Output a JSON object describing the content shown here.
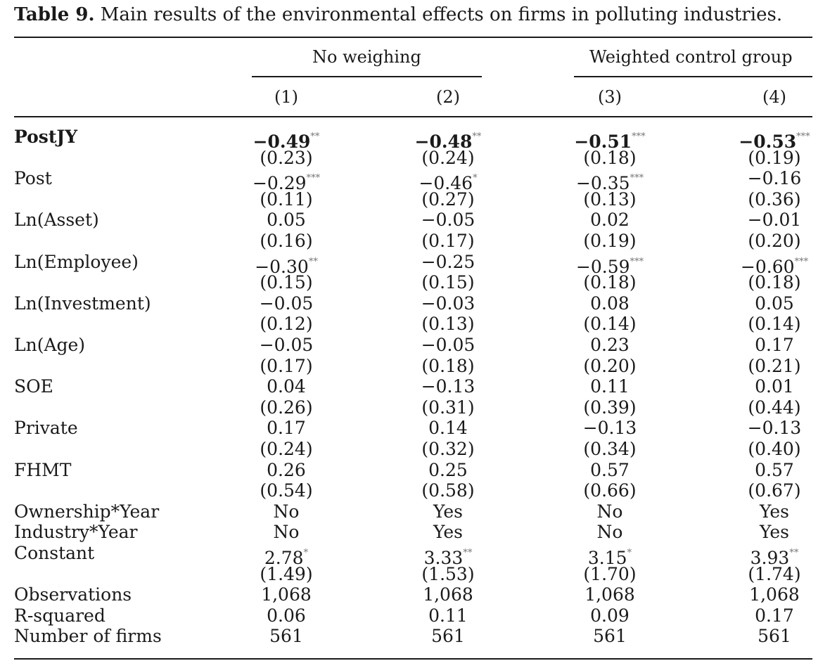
{
  "caption": {
    "label": "Table 9.",
    "text": " Main results of the environmental effects on firms in polluting industries."
  },
  "groups": {
    "left": "No weighing",
    "right": "Weighted control group"
  },
  "columns": [
    "(1)",
    "(2)",
    "(3)",
    "(4)"
  ],
  "rows": [
    {
      "label": "PostJY",
      "bold": true,
      "cells": [
        {
          "v": "−0.49",
          "s": "**"
        },
        {
          "v": "−0.48",
          "s": "**"
        },
        {
          "v": "−0.51",
          "s": "***"
        },
        {
          "v": "−0.53",
          "s": "***"
        }
      ]
    },
    {
      "label": "",
      "cells": [
        {
          "v": "(0.23)"
        },
        {
          "v": "(0.24)"
        },
        {
          "v": "(0.18)"
        },
        {
          "v": "(0.19)"
        }
      ]
    },
    {
      "label": "Post",
      "cells": [
        {
          "v": "−0.29",
          "s": "***"
        },
        {
          "v": "−0.46",
          "s": "*"
        },
        {
          "v": "−0.35",
          "s": "***"
        },
        {
          "v": "−0.16"
        }
      ]
    },
    {
      "label": "",
      "cells": [
        {
          "v": "(0.11)"
        },
        {
          "v": "(0.27)"
        },
        {
          "v": "(0.13)"
        },
        {
          "v": "(0.36)"
        }
      ]
    },
    {
      "label": "Ln(Asset)",
      "cells": [
        {
          "v": "0.05"
        },
        {
          "v": "−0.05"
        },
        {
          "v": "0.02"
        },
        {
          "v": "−0.01"
        }
      ]
    },
    {
      "label": "",
      "cells": [
        {
          "v": "(0.16)"
        },
        {
          "v": "(0.17)"
        },
        {
          "v": "(0.19)"
        },
        {
          "v": "(0.20)"
        }
      ]
    },
    {
      "label": "Ln(Employee)",
      "cells": [
        {
          "v": "−0.30",
          "s": "**"
        },
        {
          "v": "−0.25"
        },
        {
          "v": "−0.59",
          "s": "***"
        },
        {
          "v": "−0.60",
          "s": "***"
        }
      ]
    },
    {
      "label": "",
      "cells": [
        {
          "v": "(0.15)"
        },
        {
          "v": "(0.15)"
        },
        {
          "v": "(0.18)"
        },
        {
          "v": "(0.18)"
        }
      ]
    },
    {
      "label": "Ln(Investment)",
      "cells": [
        {
          "v": "−0.05"
        },
        {
          "v": "−0.03"
        },
        {
          "v": "0.08"
        },
        {
          "v": "0.05"
        }
      ]
    },
    {
      "label": "",
      "cells": [
        {
          "v": "(0.12)"
        },
        {
          "v": "(0.13)"
        },
        {
          "v": "(0.14)"
        },
        {
          "v": "(0.14)"
        }
      ]
    },
    {
      "label": "Ln(Age)",
      "cells": [
        {
          "v": "−0.05"
        },
        {
          "v": "−0.05"
        },
        {
          "v": "0.23"
        },
        {
          "v": "0.17"
        }
      ]
    },
    {
      "label": "",
      "cells": [
        {
          "v": "(0.17)"
        },
        {
          "v": "(0.18)"
        },
        {
          "v": "(0.20)"
        },
        {
          "v": "(0.21)"
        }
      ]
    },
    {
      "label": "SOE",
      "cells": [
        {
          "v": "0.04"
        },
        {
          "v": "−0.13"
        },
        {
          "v": "0.11"
        },
        {
          "v": "0.01"
        }
      ]
    },
    {
      "label": "",
      "cells": [
        {
          "v": "(0.26)"
        },
        {
          "v": "(0.31)"
        },
        {
          "v": "(0.39)"
        },
        {
          "v": "(0.44)"
        }
      ]
    },
    {
      "label": "Private",
      "cells": [
        {
          "v": "0.17"
        },
        {
          "v": "0.14"
        },
        {
          "v": "−0.13"
        },
        {
          "v": "−0.13"
        }
      ]
    },
    {
      "label": "",
      "cells": [
        {
          "v": "(0.24)"
        },
        {
          "v": "(0.32)"
        },
        {
          "v": "(0.34)"
        },
        {
          "v": "(0.40)"
        }
      ]
    },
    {
      "label": "FHMT",
      "cells": [
        {
          "v": "0.26"
        },
        {
          "v": "0.25"
        },
        {
          "v": "0.57"
        },
        {
          "v": "0.57"
        }
      ]
    },
    {
      "label": "",
      "cells": [
        {
          "v": "(0.54)"
        },
        {
          "v": "(0.58)"
        },
        {
          "v": "(0.66)"
        },
        {
          "v": "(0.67)"
        }
      ]
    },
    {
      "label": "Ownership*Year",
      "cells": [
        {
          "v": "No"
        },
        {
          "v": "Yes"
        },
        {
          "v": "No"
        },
        {
          "v": "Yes"
        }
      ]
    },
    {
      "label": "Industry*Year",
      "cells": [
        {
          "v": "No"
        },
        {
          "v": "Yes"
        },
        {
          "v": "No"
        },
        {
          "v": "Yes"
        }
      ]
    },
    {
      "label": "Constant",
      "cells": [
        {
          "v": "2.78",
          "s": "*"
        },
        {
          "v": "3.33",
          "s": "**"
        },
        {
          "v": "3.15",
          "s": "*"
        },
        {
          "v": "3.93",
          "s": "**"
        }
      ]
    },
    {
      "label": "",
      "cells": [
        {
          "v": "(1.49)"
        },
        {
          "v": "(1.53)"
        },
        {
          "v": "(1.70)"
        },
        {
          "v": "(1.74)"
        }
      ]
    },
    {
      "label": "Observations",
      "cells": [
        {
          "v": "1,068"
        },
        {
          "v": "1,068"
        },
        {
          "v": "1,068"
        },
        {
          "v": "1,068"
        }
      ]
    },
    {
      "label": "R-squared",
      "cells": [
        {
          "v": "0.06"
        },
        {
          "v": "0.11"
        },
        {
          "v": "0.09"
        },
        {
          "v": "0.17"
        }
      ]
    },
    {
      "label": "Number of firms",
      "cells": [
        {
          "v": "561"
        },
        {
          "v": "561"
        },
        {
          "v": "561"
        },
        {
          "v": "561"
        }
      ]
    }
  ]
}
